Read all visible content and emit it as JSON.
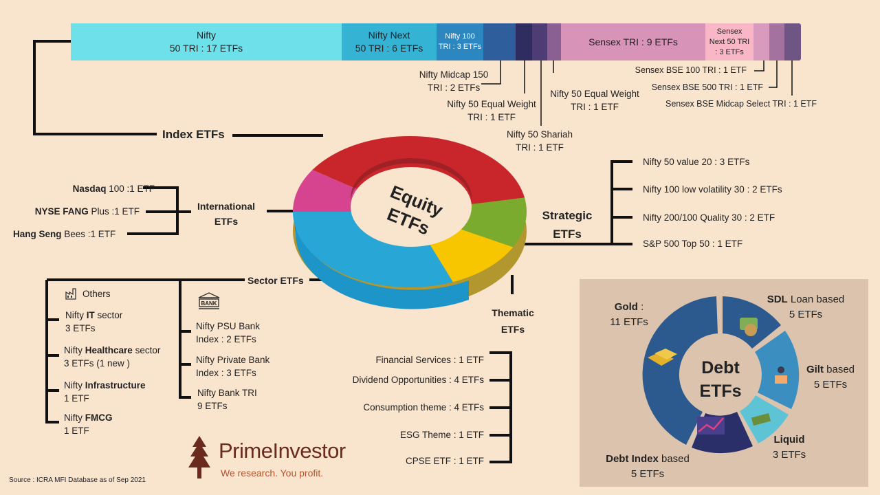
{
  "index_bar": {
    "segments": [
      {
        "line1": "Nifty",
        "line2": "50 TRI : 17 ETFs",
        "color": "#6ee0ea"
      },
      {
        "line1": "Nifty Next",
        "line2": "50 TRI : 6 ETFs",
        "color": "#35b3d5"
      },
      {
        "line1": "Nifty 100",
        "line2": "TRI : 3 ETFs",
        "color": "#2c86c0"
      },
      {
        "color": "#2e5f9c"
      },
      {
        "color": "#2f2c5f"
      },
      {
        "color": "#4e3d74"
      },
      {
        "color": "#8a5f91"
      },
      {
        "line1": "Sensex TRI : 9 ETFs",
        "color": "#d793b8"
      },
      {
        "line1": "Sensex",
        "line2": "Next 50 TRI",
        "line3": ": 3 ETFs",
        "color": "#f8b6c6"
      },
      {
        "color": "#d99bbd"
      },
      {
        "color": "#a4729e"
      },
      {
        "color": "#6e5584"
      }
    ],
    "callouts": {
      "midcap150": {
        "line1": "Nifty Midcap 150",
        "line2": "TRI : 2 ETFs"
      },
      "equal_weight_tri": {
        "line1": "Nifty 50 Equal Weight",
        "line2": "TRI : 1 ETF"
      },
      "shariah": {
        "line1": "Nifty 50 Shariah",
        "line2": "TRI : 1 ETF"
      },
      "equal_weight": {
        "line1": "Nifty 50 Equal Weight",
        "line2": "TRI : 1 ETF"
      },
      "bse100": "Sensex BSE 100 TRI : 1 ETF",
      "bse500": "Sensex BSE 500 TRI : 1 ETF",
      "midcap_select": "Sensex BSE Midcap Select TRI : 1 ETF"
    }
  },
  "headers": {
    "index": "Index ETFs",
    "international_1": "International",
    "international_2": "ETFs",
    "strategic_1": "Strategic",
    "strategic_2": "ETFs",
    "sector": "Sector ETFs",
    "thematic_1": "Thematic",
    "thematic_2": "ETFs"
  },
  "center": {
    "line1": "Equity",
    "line2": "ETFs"
  },
  "international": [
    {
      "bold": "Nasdaq",
      "rest": " 100 :1 ETF"
    },
    {
      "bold": "NYSE FANG",
      "rest": " Plus :1 ETF"
    },
    {
      "bold": "Hang Seng",
      "rest": " Bees :1 ETF"
    }
  ],
  "strategic": [
    "Nifty 50 value 20 : 3 ETFs",
    "Nifty 100 low volatility 30 : 2 ETFs",
    "Nifty 200/100 Quality 30 : 2 ETF",
    "S&P 500 Top 50 : 1 ETF"
  ],
  "sector_others": {
    "title": "Others",
    "items": [
      {
        "pre": "Nifty ",
        "bold": "IT",
        "post": " sector",
        "line2": "3 ETFs"
      },
      {
        "pre": "Nifty ",
        "bold": "Healthcare",
        "post": " sector",
        "line2": "3 ETFs (1 new )"
      },
      {
        "pre": "Nifty ",
        "bold": "Infrastructure",
        "post": "",
        "line2": "1 ETF"
      },
      {
        "pre": "Nifty ",
        "bold": "FMCG",
        "post": "",
        "line2": "1 ETF"
      }
    ]
  },
  "sector_bank": {
    "icon_label": "BANK",
    "items": [
      {
        "line1": "Nifty PSU Bank",
        "line2": "Index : 2 ETFs"
      },
      {
        "line1": "Nifty Private Bank",
        "line2": "Index : 3 ETFs"
      },
      {
        "line1": "Nifty Bank TRI",
        "line2": "9 ETFs"
      }
    ]
  },
  "thematic": [
    "Financial Services : 1 ETF",
    "Dividend Opportunities : 4 ETFs",
    "Consumption theme : 4 ETFs",
    "ESG Theme : 1 ETF",
    "CPSE ETF : 1 ETF"
  ],
  "debt": {
    "center_1": "Debt",
    "center_2": "ETFs",
    "gold": {
      "bold": "Gold",
      "rest": " :",
      "line2": "11 ETFs"
    },
    "sdl": {
      "bold": "SDL",
      "rest": " Loan based",
      "line2": "5 ETFs"
    },
    "gilt": {
      "bold": "Gilt",
      "rest": " based",
      "line2": "5 ETFs"
    },
    "liquid": {
      "bold": "Liquid",
      "line2": "3 ETFs"
    },
    "debt_index": {
      "bold": "Debt Index",
      "rest": " based",
      "line2": "5 ETFs"
    },
    "colors": {
      "panel": "#dcc3ae",
      "dark": "#2c5a8f",
      "mid": "#3a8fc0",
      "light": "#5fc3d6",
      "navy": "#2a2f6a"
    }
  },
  "brand": {
    "name": "PrimeInvestor",
    "tagline": "We research.  You profit."
  },
  "source": "Source : ICRA MFI Database as of Sep 2021"
}
